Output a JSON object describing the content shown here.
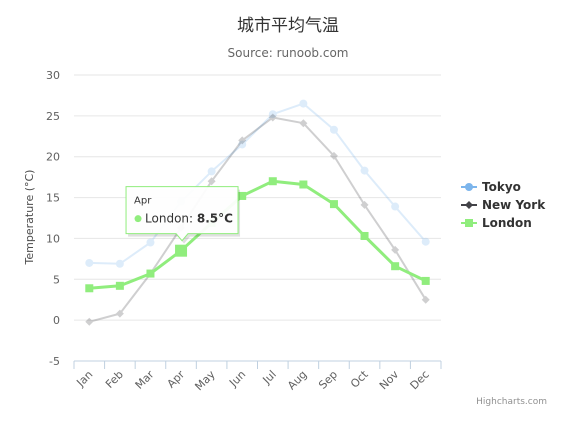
{
  "chart_data": {
    "type": "line",
    "title": "城市平均气温",
    "subtitle": "Source: runoob.com",
    "ylabel": "Temperature (°C)",
    "xlabel": "",
    "categories": [
      "Jan",
      "Feb",
      "Mar",
      "Apr",
      "May",
      "Jun",
      "Jul",
      "Aug",
      "Sep",
      "Oct",
      "Nov",
      "Dec"
    ],
    "yticks": [
      -5,
      0,
      5,
      10,
      15,
      20,
      25,
      30
    ],
    "ylim": [
      -5,
      30
    ],
    "grid": true,
    "legend_position": "right",
    "highlighted_series": "London",
    "series": [
      {
        "name": "Tokyo",
        "color": "#7cb5ec",
        "marker": "circle",
        "values": [
          7.0,
          6.9,
          9.5,
          14.5,
          18.2,
          21.5,
          25.2,
          26.5,
          23.3,
          18.3,
          13.9,
          9.6
        ]
      },
      {
        "name": "New York",
        "color": "#434348",
        "marker": "diamond",
        "values": [
          -0.2,
          0.8,
          5.7,
          11.3,
          17.0,
          22.0,
          24.8,
          24.1,
          20.1,
          14.1,
          8.6,
          2.5
        ]
      },
      {
        "name": "London",
        "color": "#90ed7d",
        "marker": "square",
        "values": [
          3.9,
          4.2,
          5.7,
          8.5,
          11.9,
          15.2,
          17.0,
          16.6,
          14.2,
          10.3,
          6.6,
          4.8
        ]
      }
    ],
    "tooltip": {
      "category": "Apr",
      "series": "London",
      "label": "London: ",
      "value": "8.5°C"
    },
    "credits": "Highcharts.com"
  }
}
